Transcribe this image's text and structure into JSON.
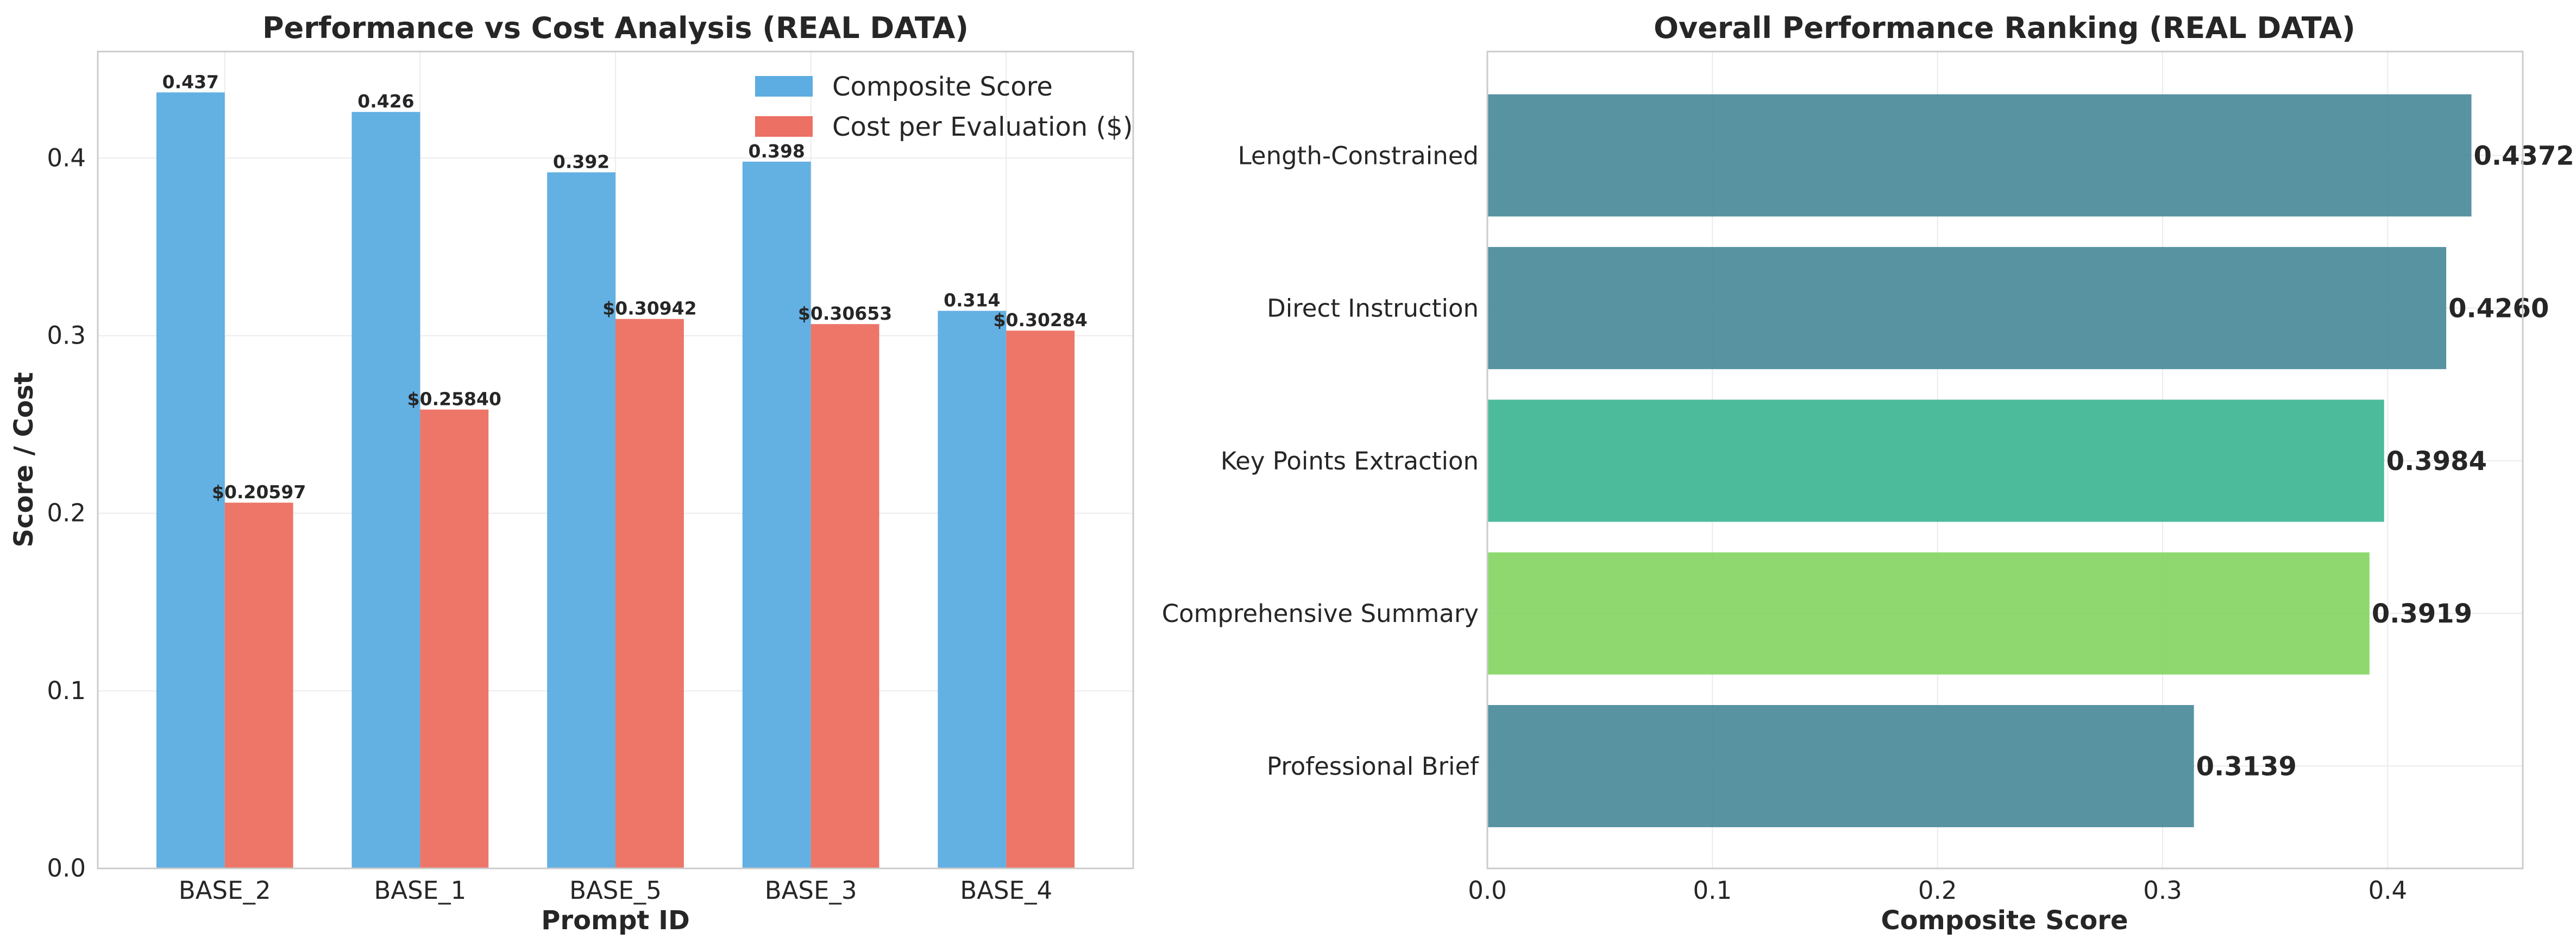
{
  "chart_data": [
    {
      "type": "bar",
      "title": "Performance vs Cost Analysis (REAL DATA)",
      "xlabel": "Prompt ID",
      "ylabel": "Score / Cost",
      "categories": [
        "BASE_2",
        "BASE_1",
        "BASE_5",
        "BASE_3",
        "BASE_4"
      ],
      "ylim": [
        0,
        0.46
      ],
      "yticks": [
        "0.0",
        "0.1",
        "0.2",
        "0.3",
        "0.4"
      ],
      "grid": true,
      "legend_position": "top-right",
      "series": [
        {
          "name": "Composite Score",
          "color": "#5DADE2",
          "values": [
            0.437,
            0.426,
            0.392,
            0.398,
            0.314
          ],
          "labels": [
            "0.437",
            "0.426",
            "0.392",
            "0.398",
            "0.314"
          ]
        },
        {
          "name": "Cost per Evaluation ($)",
          "color": "#EC7063",
          "values": [
            0.20597,
            0.2584,
            0.30942,
            0.30653,
            0.30284
          ],
          "labels": [
            "$0.20597",
            "$0.25840",
            "$0.30942",
            "$0.30653",
            "$0.30284"
          ]
        }
      ]
    },
    {
      "type": "bar",
      "orientation": "horizontal",
      "title": "Overall Performance Ranking (REAL DATA)",
      "xlabel": "Composite Score",
      "ylabel": "",
      "categories": [
        "Length-Constrained",
        "Direct Instruction",
        "Key Points Extraction",
        "Comprehensive Summary",
        "Professional Brief"
      ],
      "values": [
        0.4372,
        0.426,
        0.3984,
        0.3919,
        0.3139
      ],
      "labels": [
        "0.4372",
        "0.4260",
        "0.3984",
        "0.3919",
        "0.3139"
      ],
      "colors": [
        "#468798",
        "#468798",
        "#39B491",
        "#82D45F",
        "#468798"
      ],
      "xlim": [
        0,
        0.46
      ],
      "xticks": [
        "0.0",
        "0.1",
        "0.2",
        "0.3",
        "0.4"
      ],
      "grid": true
    }
  ]
}
